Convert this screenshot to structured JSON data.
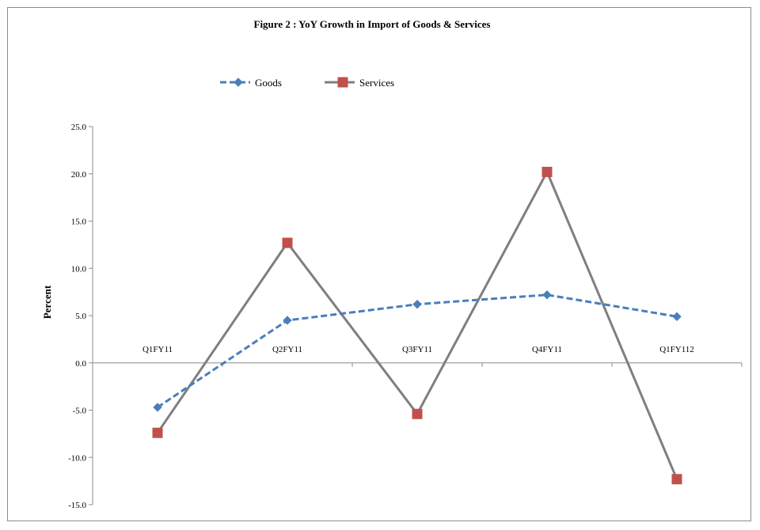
{
  "chart_data": {
    "type": "line",
    "title": "Figure 2 : YoY Growth in Import of Goods & Services",
    "xlabel": "",
    "ylabel": "Percent",
    "categories": [
      "Q1FY11",
      "Q2FY11",
      "Q3FY11",
      "Q4FY11",
      "Q1FY112"
    ],
    "ylim": [
      -15.0,
      25.0
    ],
    "ytick_labels": [
      "25.0",
      "20.0",
      "15.0",
      "10.0",
      "5.0",
      "0.0",
      "-5.0",
      "-10.0",
      "-15.0"
    ],
    "yticks": [
      25,
      20,
      15,
      10,
      5,
      0,
      -5,
      -10,
      -15
    ],
    "grid": false,
    "legend_position": "top",
    "series": [
      {
        "name": "Goods",
        "values": [
          -4.7,
          4.5,
          6.2,
          7.2,
          4.9
        ],
        "color": "#4a7ebb",
        "style": "dashed",
        "marker": "diamond"
      },
      {
        "name": "Services",
        "values": [
          -7.4,
          12.7,
          -5.4,
          20.2,
          -12.3
        ],
        "color": "#7f7f7f",
        "style": "solid",
        "marker": "square",
        "marker_color": "#c0504d"
      }
    ]
  }
}
